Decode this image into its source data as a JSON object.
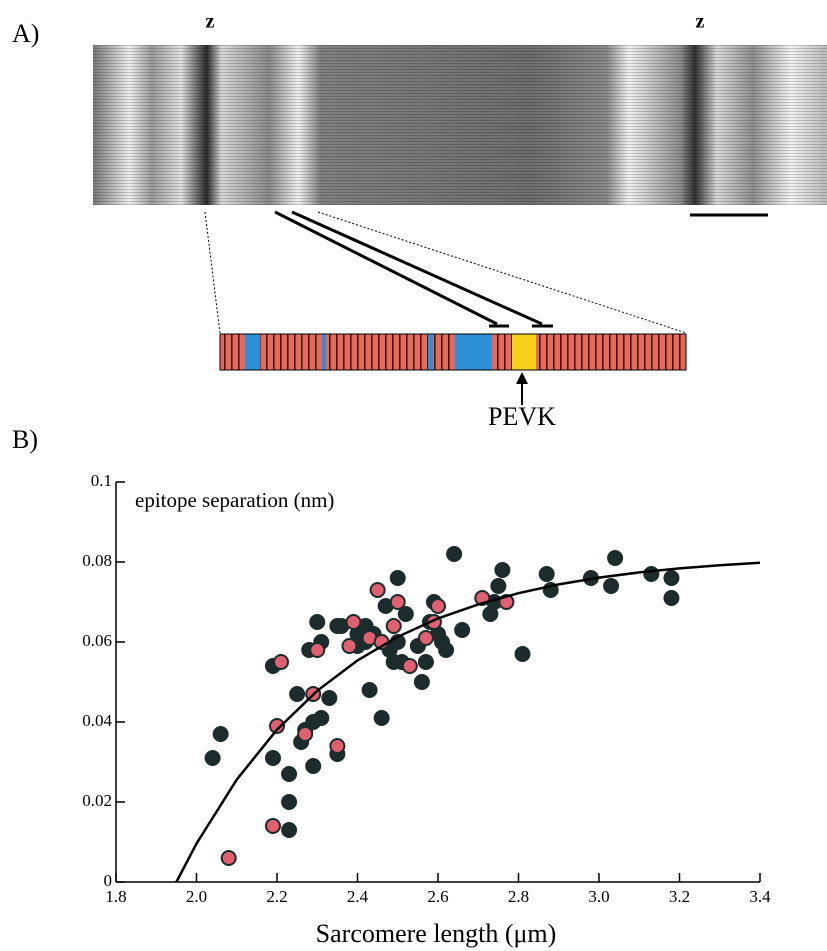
{
  "panel_a": {
    "label": "A)",
    "z_labels": [
      "z",
      "z"
    ],
    "marker": "PEVK"
  },
  "panel_b_label": "B)",
  "chart_data": {
    "type": "scatter",
    "annotation": "epitope separation (nm)",
    "x_label": "Sarcomere length (μm)",
    "xlim": [
      1.8,
      3.4
    ],
    "xticks": [
      1.8,
      {
        "value": 2,
        "label": "2.0"
      },
      2.2,
      2.4,
      2.6,
      2.8,
      {
        "value": 3,
        "label": "3.0"
      },
      3.2,
      3.4
    ],
    "ylim": [
      0,
      0.1
    ],
    "yticks": [
      0,
      0.02,
      0.04,
      0.06,
      0.08,
      0.1
    ],
    "series": [
      {
        "color": "#1c2b2b",
        "x": [
          2.04,
          2.06,
          2.19,
          2.19,
          2.23,
          2.23,
          2.23,
          2.25,
          2.26,
          2.27,
          2.28,
          2.29,
          2.29,
          2.3,
          2.31,
          2.31,
          2.33,
          2.35,
          2.35,
          2.36,
          2.4,
          2.4,
          2.42,
          2.42,
          2.43,
          2.44,
          2.46,
          2.47,
          2.48,
          2.49,
          2.5,
          2.5,
          2.51,
          2.52,
          2.55,
          2.56,
          2.57,
          2.58,
          2.59,
          2.6,
          2.61,
          2.62,
          2.64,
          2.66,
          2.73,
          2.74,
          2.75,
          2.76,
          2.81,
          2.87,
          2.88,
          2.98,
          3.03,
          3.04,
          3.13,
          3.18,
          3.18
        ],
        "values": [
          0.031,
          0.037,
          0.031,
          0.054,
          0.027,
          0.02,
          0.013,
          0.047,
          0.035,
          0.038,
          0.058,
          0.029,
          0.04,
          0.065,
          0.041,
          0.06,
          0.046,
          0.032,
          0.064,
          0.064,
          0.062,
          0.059,
          0.064,
          0.06,
          0.048,
          0.062,
          0.041,
          0.069,
          0.058,
          0.055,
          0.076,
          0.06,
          0.055,
          0.067,
          0.059,
          0.05,
          0.055,
          0.065,
          0.07,
          0.062,
          0.06,
          0.058,
          0.082,
          0.063,
          0.067,
          0.07,
          0.074,
          0.078,
          0.057,
          0.077,
          0.073,
          0.076,
          0.074,
          0.081,
          0.077,
          0.076,
          0.071
        ]
      },
      {
        "color": "#e06070",
        "x": [
          2.08,
          2.19,
          2.2,
          2.21,
          2.27,
          2.29,
          2.3,
          2.35,
          2.38,
          2.39,
          2.43,
          2.45,
          2.46,
          2.49,
          2.5,
          2.53,
          2.57,
          2.59,
          2.6,
          2.71,
          2.77
        ],
        "values": [
          0.006,
          0.014,
          0.039,
          0.055,
          0.037,
          0.047,
          0.058,
          0.034,
          0.059,
          0.065,
          0.061,
          0.073,
          0.06,
          0.064,
          0.07,
          0.054,
          0.061,
          0.065,
          0.069,
          0.071,
          0.07
        ]
      }
    ],
    "fit": {
      "color": "#000",
      "x": [
        1.95,
        2.0,
        2.1,
        2.2,
        2.3,
        2.4,
        2.5,
        2.6,
        2.7,
        2.8,
        2.9,
        3.0,
        3.1,
        3.2,
        3.3,
        3.4
      ],
      "values": [
        0,
        0.0096,
        0.0256,
        0.0381,
        0.0478,
        0.0554,
        0.0613,
        0.0659,
        0.0694,
        0.0722,
        0.0744,
        0.0761,
        0.0774,
        0.0784,
        0.0792,
        0.0798
      ]
    }
  }
}
